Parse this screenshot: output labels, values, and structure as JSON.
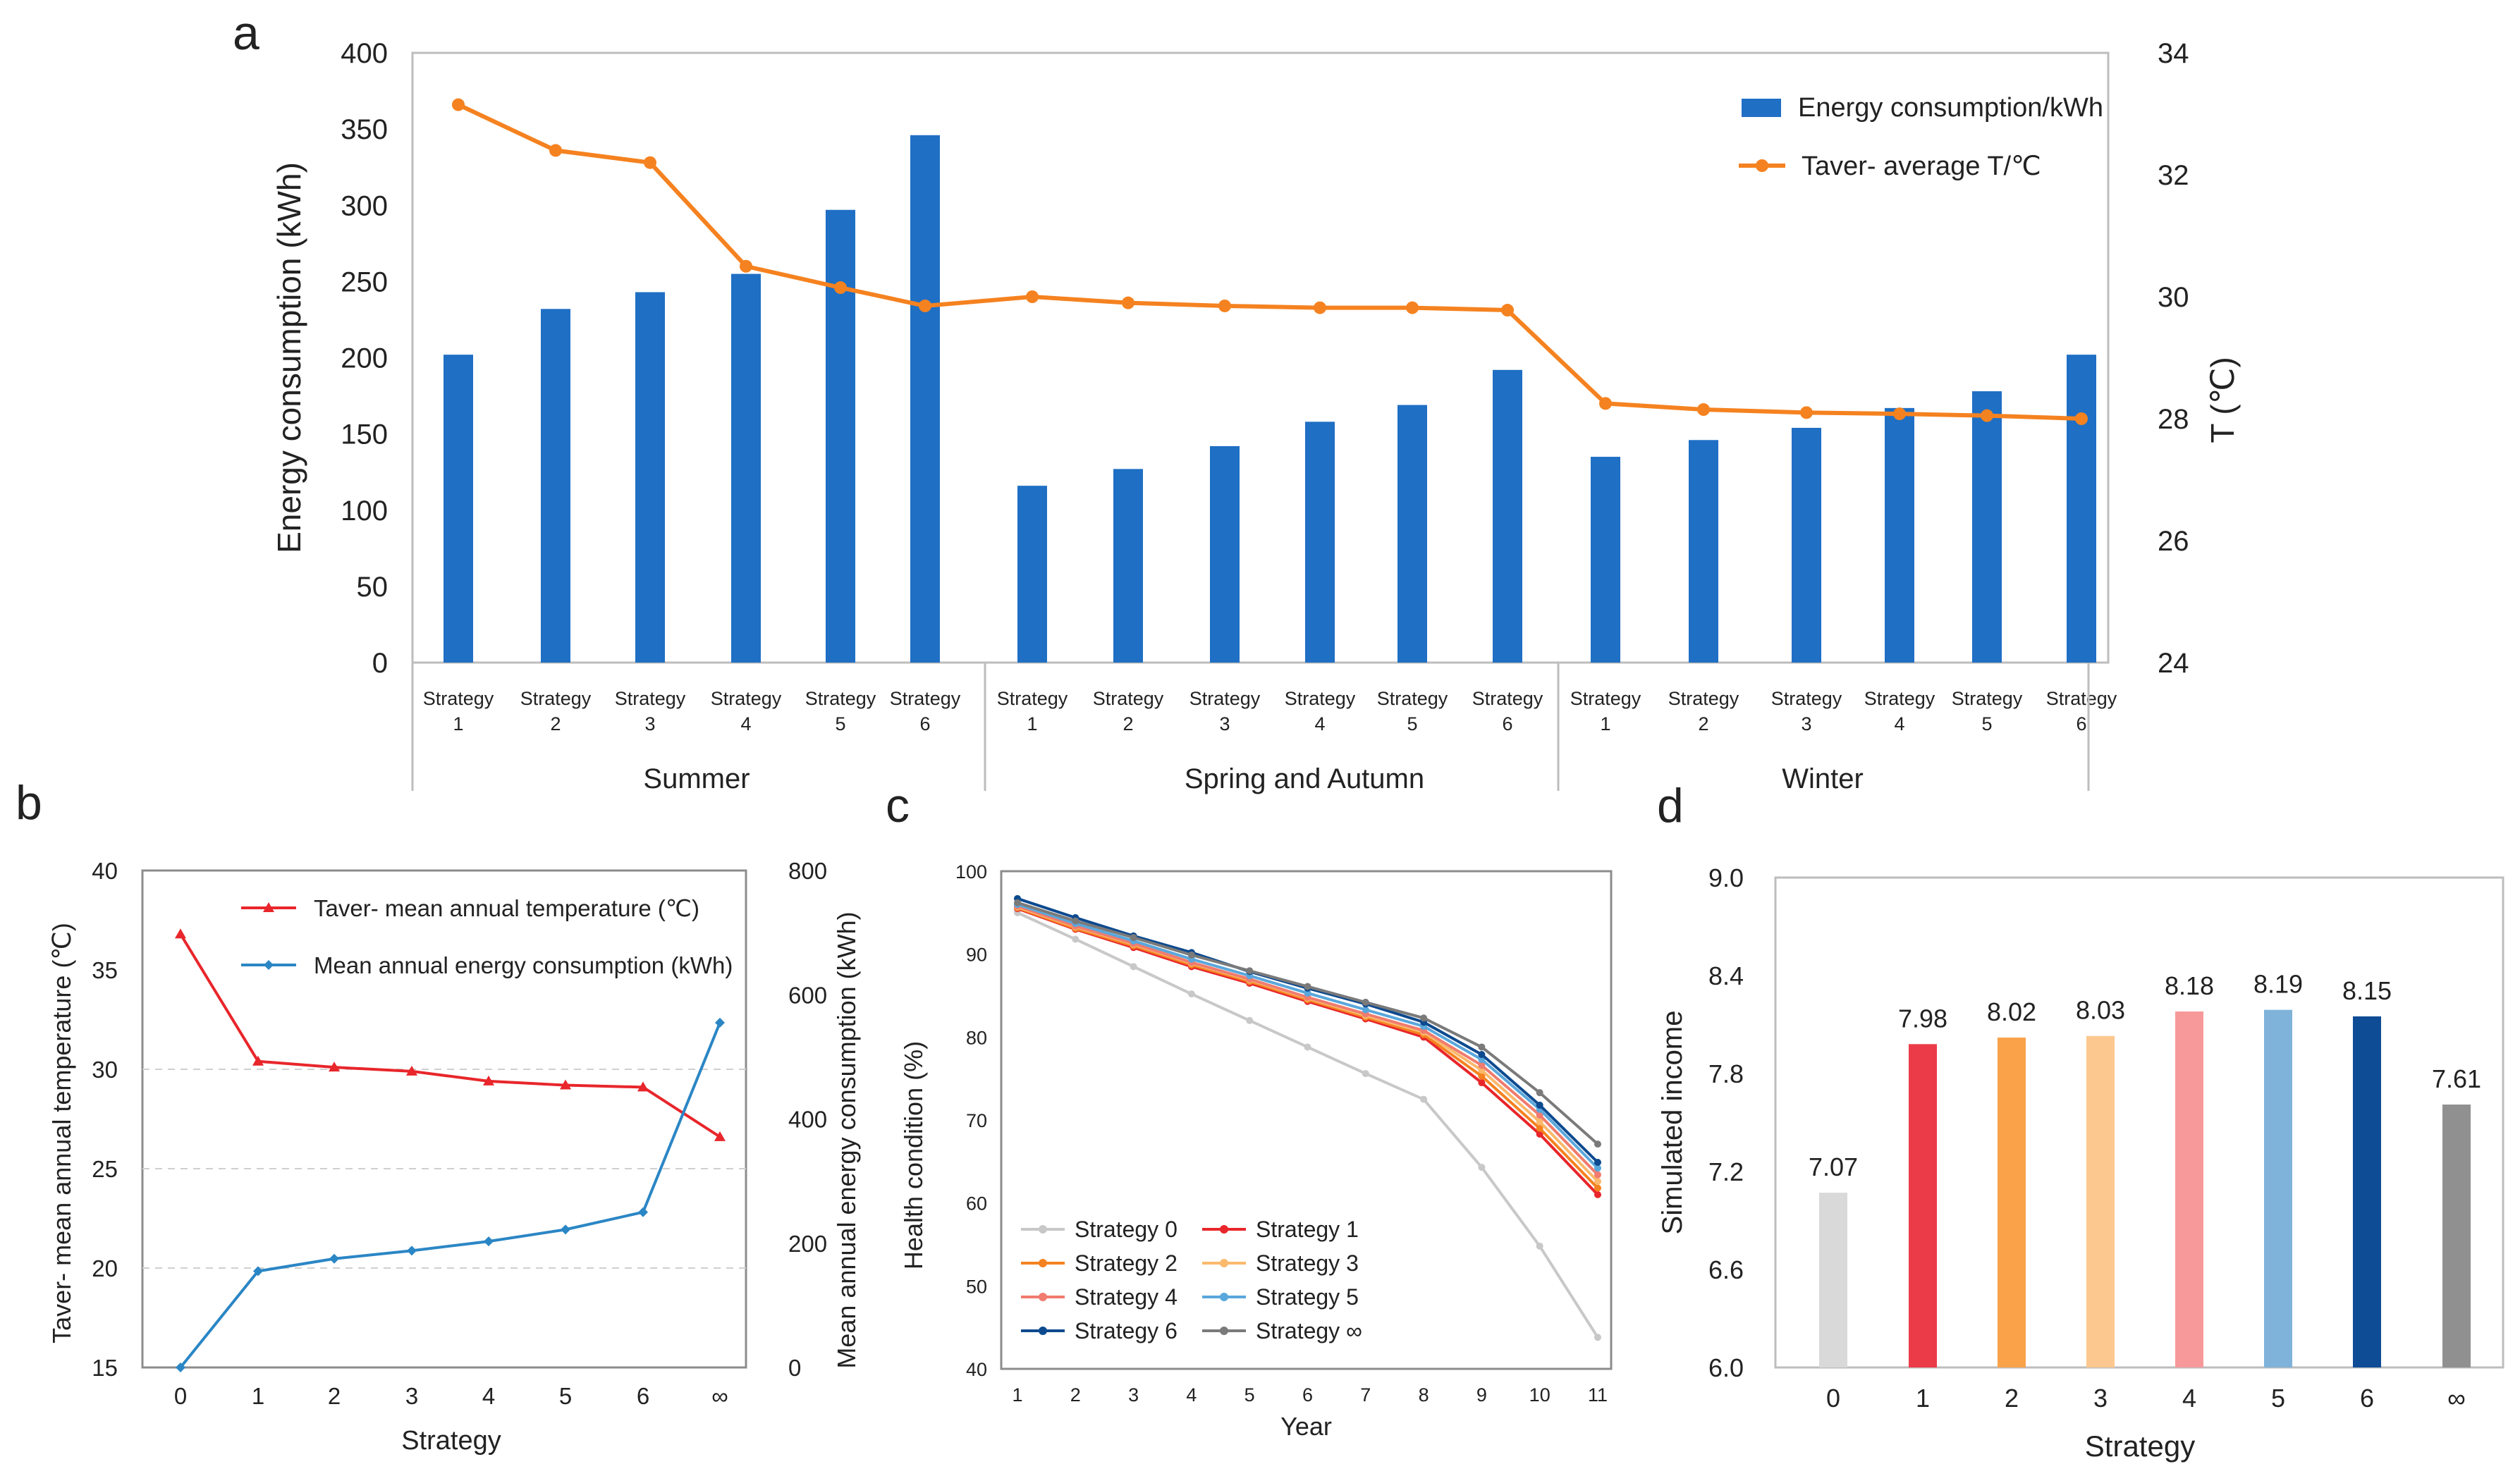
{
  "panel_labels": {
    "a": "a",
    "b": "b",
    "c": "c",
    "d": "d"
  },
  "chart_data": [
    {
      "id": "a",
      "type": "bar+line",
      "ylabel": "Energy consumption (kWh)",
      "y2label": "T (℃)",
      "ylim": [
        0,
        400
      ],
      "y2lim": [
        24,
        34
      ],
      "yticks": [
        "0",
        "50",
        "100",
        "150",
        "200",
        "250",
        "300",
        "350",
        "400"
      ],
      "y2ticks": [
        "24",
        "26",
        "28",
        "30",
        "32",
        "34"
      ],
      "categories": [
        "Strategy 1",
        "Strategy 2",
        "Strategy 3",
        "Strategy 4",
        "Strategy 5",
        "Strategy 6",
        "Strategy 1",
        "Strategy 2",
        "Strategy 3",
        "Strategy 4",
        "Strategy 5",
        "Strategy 6",
        "Strategy 1",
        "Strategy 2",
        "Strategy 3",
        "Strategy 4",
        "Strategy 5",
        "Strategy 6"
      ],
      "groups": [
        "Summer",
        "Spring and Autumn",
        "Winter"
      ],
      "bar_series": {
        "name": "Energy consumption/kWh",
        "color": "#1f6fc4",
        "values": [
          202,
          232,
          243,
          255,
          297,
          346,
          116,
          127,
          142,
          158,
          169,
          192,
          135,
          146,
          154,
          167,
          178,
          202
        ]
      },
      "line_series": {
        "name": "Taver- average T/℃",
        "color": "#f58220",
        "values": [
          33.15,
          32.4,
          32.2,
          30.5,
          30.15,
          29.85,
          30.0,
          29.9,
          29.85,
          29.82,
          29.82,
          29.78,
          28.25,
          28.15,
          28.1,
          28.08,
          28.05,
          28.0
        ]
      }
    },
    {
      "id": "b",
      "type": "line",
      "xlabel": "Strategy",
      "ylabel": "Taver- mean annual temperature (℃)",
      "y2label": "Mean annual energy consumption (kWh)",
      "categories": [
        "0",
        "1",
        "2",
        "3",
        "4",
        "5",
        "6",
        "∞"
      ],
      "ylim": [
        15,
        40
      ],
      "y2lim": [
        0,
        800
      ],
      "yticks": [
        "15",
        "20",
        "25",
        "30",
        "35",
        "40"
      ],
      "y2ticks": [
        "0",
        "200",
        "400",
        "600",
        "800"
      ],
      "series": [
        {
          "name": "Taver- mean annual temperature (℃)",
          "color": "#e8262b",
          "axis": "left",
          "values": [
            36.8,
            30.4,
            30.1,
            29.9,
            29.4,
            29.2,
            29.1,
            26.6
          ]
        },
        {
          "name": "Mean annual energy consumption (kWh)",
          "color": "#2b86c5",
          "axis": "right",
          "values": [
            0,
            155,
            175,
            188,
            203,
            222,
            250,
            555
          ]
        }
      ]
    },
    {
      "id": "c",
      "type": "line",
      "xlabel": "Year",
      "ylabel": "Health condition (%)",
      "x": [
        "1",
        "2",
        "3",
        "4",
        "5",
        "6",
        "7",
        "8",
        "9",
        "10",
        "11"
      ],
      "ylim": [
        40,
        100
      ],
      "yticks": [
        "40",
        "50",
        "60",
        "70",
        "80",
        "90",
        "100"
      ],
      "series": [
        {
          "name": "Strategy 0",
          "color": "#c8c8c8",
          "values": [
            95,
            91.8,
            88.5,
            85.2,
            82,
            78.8,
            75.6,
            72.5,
            64.3,
            54.8,
            43.8
          ]
        },
        {
          "name": "Strategy 1",
          "color": "#e8262b",
          "values": [
            95.5,
            93,
            90.8,
            88.5,
            86.5,
            84.3,
            82.2,
            80,
            74.5,
            68.3,
            61
          ]
        },
        {
          "name": "Strategy 2",
          "color": "#f58220",
          "values": [
            95.6,
            93.1,
            91,
            88.7,
            86.7,
            84.5,
            82.4,
            80.3,
            75.3,
            69,
            61.8
          ]
        },
        {
          "name": "Strategy 3",
          "color": "#fbb96c",
          "values": [
            95.7,
            93.3,
            91.2,
            88.9,
            86.9,
            84.7,
            82.6,
            80.6,
            76,
            69.8,
            62.6
          ]
        },
        {
          "name": "Strategy 4",
          "color": "#f07b6e",
          "values": [
            95.8,
            93.4,
            91.3,
            89,
            87,
            84.8,
            82.8,
            80.8,
            76.6,
            70.6,
            63.4
          ]
        },
        {
          "name": "Strategy 5",
          "color": "#5aa7dc",
          "values": [
            96,
            93.7,
            91.6,
            89.4,
            87.4,
            85.3,
            83.3,
            81.3,
            77.3,
            71.3,
            64.2
          ]
        },
        {
          "name": "Strategy 6",
          "color": "#0d4a8f",
          "values": [
            96.7,
            94.4,
            92.2,
            90.2,
            87.9,
            85.9,
            84,
            81.8,
            77.9,
            71.8,
            64.9
          ]
        },
        {
          "name": "Strategy ∞",
          "color": "#7a7a7a",
          "values": [
            96.2,
            94,
            92,
            89.9,
            88,
            86.1,
            84.2,
            82.3,
            78.8,
            73.3,
            67.1
          ]
        }
      ]
    },
    {
      "id": "d",
      "type": "bar",
      "xlabel": "Strategy",
      "ylabel": "Simulated income",
      "categories": [
        "0",
        "1",
        "2",
        "3",
        "4",
        "5",
        "6",
        "∞"
      ],
      "values": [
        7.07,
        7.98,
        8.02,
        8.03,
        8.18,
        8.19,
        8.15,
        7.61
      ],
      "value_labels": [
        "7.07",
        "7.98",
        "8.02",
        "8.03",
        "8.18",
        "8.19",
        "8.15",
        "7.61"
      ],
      "colors": [
        "#d9d9d9",
        "#ec3b48",
        "#f9a24a",
        "#fcc88f",
        "#f7999a",
        "#7fb3d9",
        "#0f4c96",
        "#909090"
      ],
      "ylim": [
        6.0,
        9.0
      ],
      "yticks": [
        "6.0",
        "6.6",
        "7.2",
        "7.8",
        "8.4",
        "9.0"
      ]
    }
  ]
}
